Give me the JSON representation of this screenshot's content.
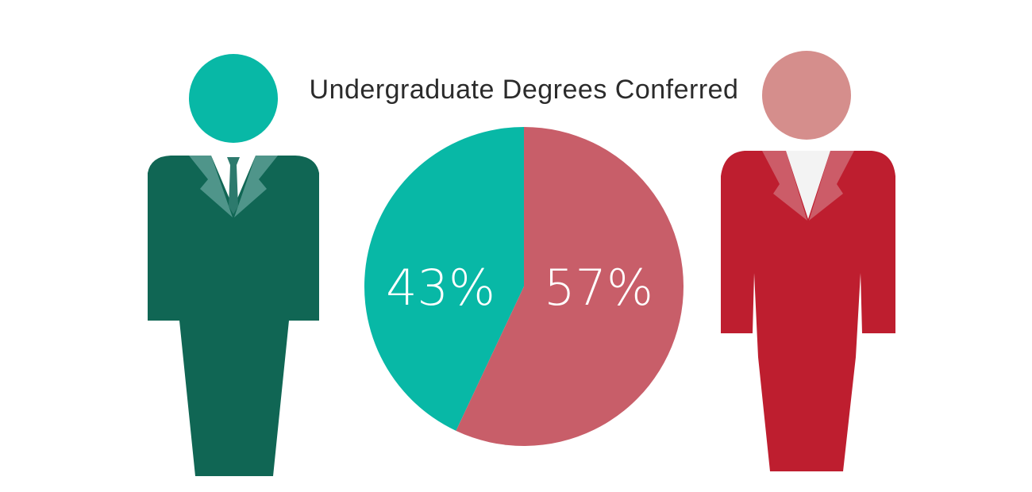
{
  "chart_data": {
    "type": "pie",
    "title": "Undergraduate Degrees Conferred",
    "slices": [
      {
        "label": "43%",
        "value": 43,
        "color": "#08b8a6"
      },
      {
        "label": "57%",
        "value": 57,
        "color": "#c85e69"
      }
    ],
    "start_angle": "12 o'clock",
    "direction": "counter-clockwise for first slice",
    "legend": "none"
  },
  "figures": {
    "left": {
      "head_color": "#08b8a6",
      "suit_color": "#106654",
      "lapel_color": "#4f958a",
      "shirt_color": "#ffffff",
      "tie_color": "#2d7a6d"
    },
    "right": {
      "head_color": "#d58e8c",
      "dress_color": "#be1e2f",
      "lapel_color": "#cc5c68",
      "shirt_color": "#f3f3f3"
    }
  }
}
